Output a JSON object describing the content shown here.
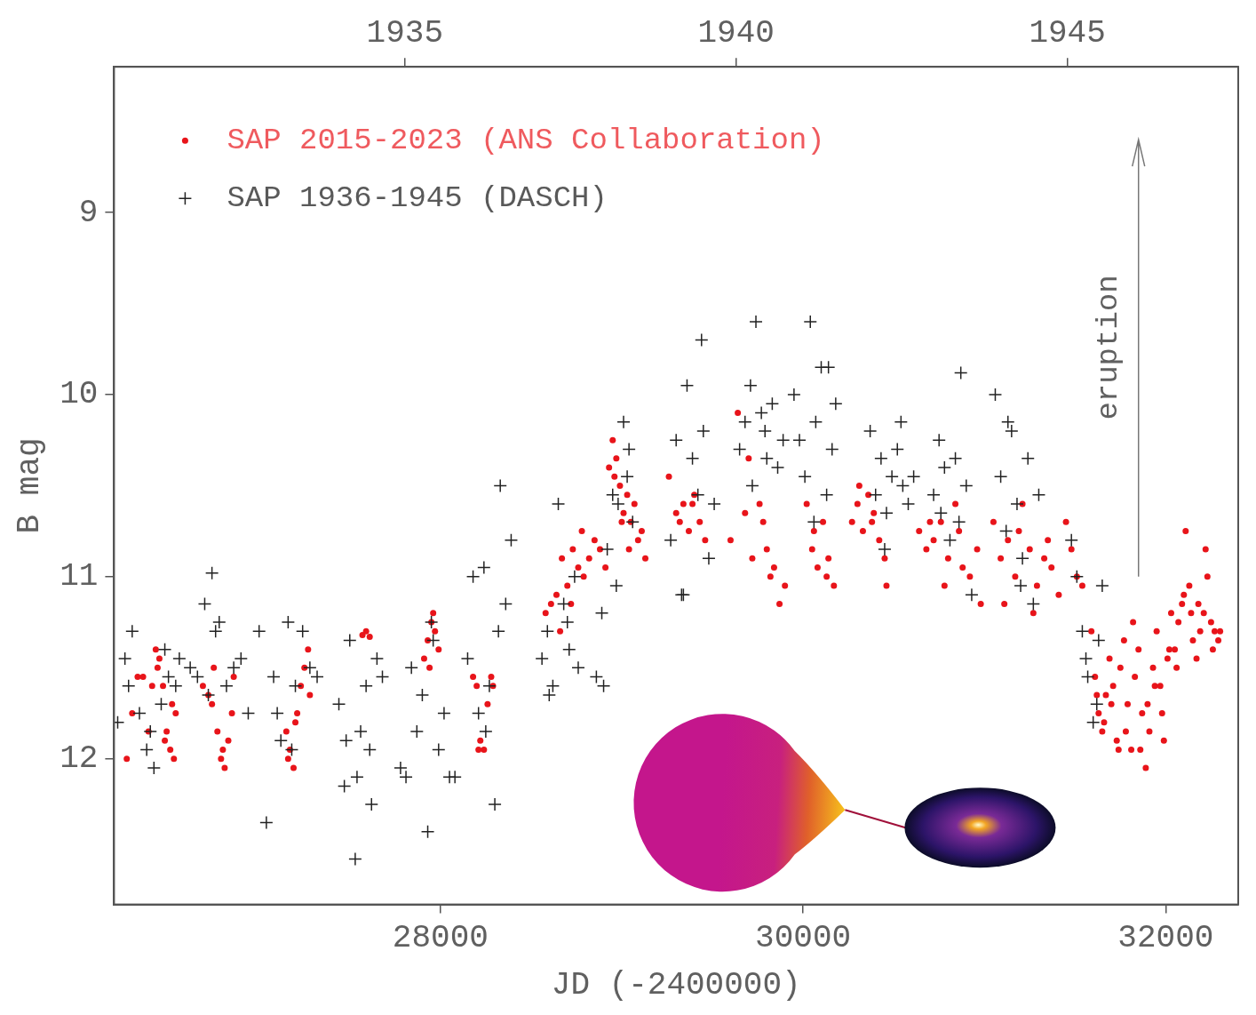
{
  "chart_data": {
    "type": "scatter",
    "x_label": "JD (-2400000)",
    "y_label": "B mag",
    "xlim": [
      26200,
      32400
    ],
    "xticks": [
      28000,
      30000,
      32000
    ],
    "x2lim": [
      1930.61,
      1947.58
    ],
    "x2ticks": [
      1935,
      1940,
      1945
    ],
    "ylim": [
      8.2,
      12.8
    ],
    "yticks": [
      9,
      10,
      11,
      12
    ],
    "y_reversed": true,
    "grid": false,
    "legend": "upper left",
    "annotations": [
      {
        "text": "eruption",
        "x": 31850,
        "y": 11,
        "arrow_to": 8.6
      }
    ],
    "series": [
      {
        "name": "SAP 2015-2023 (ANS Collaboration)",
        "color": "#e8141a",
        "marker": "circle",
        "x": [
          26270,
          26300,
          26330,
          26360,
          26390,
          26410,
          26430,
          26450,
          26470,
          26490,
          26510,
          26530,
          26540,
          26520,
          26480,
          26440,
          26690,
          26720,
          26750,
          26770,
          26790,
          26810,
          26830,
          26850,
          26860,
          26800,
          26740,
          27150,
          27170,
          27190,
          27210,
          27230,
          27250,
          27270,
          27280,
          27200,
          27160,
          27570,
          27590,
          27610,
          27910,
          27930,
          27950,
          27970,
          27990,
          27940,
          27960,
          28180,
          28200,
          28220,
          28240,
          28260,
          28280,
          28290,
          28210,
          28580,
          28610,
          28640,
          28670,
          28700,
          28730,
          28760,
          28790,
          28820,
          28850,
          28880,
          28910,
          28660,
          28720,
          28780,
          28930,
          28950,
          28970,
          28990,
          29010,
          29030,
          29050,
          29070,
          29090,
          29110,
          29130,
          28960,
          29000,
          29040,
          29260,
          29300,
          29340,
          29370,
          29400,
          29430,
          29460,
          29320,
          29390,
          29600,
          29640,
          29680,
          29720,
          29760,
          29800,
          29840,
          29870,
          29900,
          29700,
          29780,
          29820,
          30020,
          30050,
          30080,
          30110,
          30140,
          30170,
          30060,
          30130,
          30270,
          30300,
          30330,
          30360,
          30390,
          30420,
          30450,
          30460,
          30310,
          30380,
          30640,
          30680,
          30720,
          30760,
          30800,
          30840,
          30880,
          30920,
          30960,
          30980,
          30700,
          30780,
          30860,
          31050,
          31090,
          31130,
          31170,
          31210,
          31250,
          31290,
          31330,
          31370,
          31410,
          31110,
          31190,
          31270,
          31350,
          31450,
          31480,
          31510,
          31540,
          31590,
          31610,
          31630,
          31650,
          31670,
          31690,
          31710,
          31730,
          31750,
          31770,
          31790,
          31810,
          31830,
          31850,
          31870,
          31890,
          31910,
          31930,
          31950,
          31970,
          31990,
          32010,
          32030,
          32050,
          32070,
          32090,
          32110,
          32130,
          32150,
          32170,
          32190,
          32210,
          32230,
          32250,
          32270,
          32290,
          31620,
          31660,
          31700,
          31740,
          31780,
          31820,
          31860,
          31900,
          31940,
          31980,
          32020,
          32060,
          32100,
          32140,
          32180,
          32220,
          32260,
          32300
        ],
        "values": [
          12.0,
          11.75,
          11.55,
          11.55,
          11.85,
          11.6,
          11.4,
          11.45,
          11.6,
          11.85,
          11.95,
          12.0,
          11.75,
          11.7,
          11.9,
          11.5,
          11.6,
          11.65,
          11.5,
          11.85,
          12.0,
          12.05,
          11.9,
          11.75,
          11.55,
          11.95,
          11.7,
          11.85,
          11.95,
          12.05,
          11.75,
          11.6,
          11.5,
          11.4,
          11.65,
          11.8,
          12.0,
          11.32,
          11.3,
          11.33,
          11.45,
          11.35,
          11.25,
          11.3,
          11.4,
          11.5,
          11.2,
          11.55,
          11.6,
          11.9,
          11.95,
          11.7,
          11.55,
          11.6,
          11.95,
          11.2,
          11.15,
          11.1,
          10.9,
          11.05,
          10.85,
          10.95,
          11.0,
          10.9,
          10.8,
          10.85,
          10.95,
          11.3,
          11.15,
          10.75,
          10.4,
          10.25,
          10.35,
          10.5,
          10.65,
          10.55,
          10.7,
          10.6,
          10.8,
          10.75,
          10.9,
          10.45,
          10.7,
          10.85,
          10.45,
          10.65,
          10.6,
          10.75,
          10.55,
          10.7,
          10.8,
          10.7,
          10.6,
          10.8,
          10.1,
          10.65,
          10.9,
          10.6,
          10.85,
          10.95,
          11.15,
          11.05,
          10.35,
          10.7,
          11.0,
          10.6,
          10.85,
          10.95,
          10.7,
          10.9,
          11.05,
          10.75,
          11.0,
          10.7,
          10.6,
          10.75,
          10.55,
          10.65,
          10.8,
          10.9,
          11.05,
          10.5,
          10.7,
          10.75,
          10.85,
          10.8,
          10.7,
          10.9,
          10.6,
          10.95,
          11.0,
          10.85,
          11.15,
          10.7,
          11.05,
          10.75,
          10.7,
          10.9,
          10.8,
          11.0,
          10.6,
          10.85,
          11.05,
          10.9,
          10.95,
          11.1,
          11.15,
          10.75,
          11.2,
          10.8,
          10.7,
          10.85,
          11.0,
          11.05,
          11.3,
          11.55,
          11.75,
          11.85,
          11.65,
          11.45,
          11.6,
          11.9,
          11.5,
          11.35,
          11.7,
          11.95,
          11.55,
          11.4,
          11.75,
          12.05,
          11.85,
          11.5,
          11.3,
          11.6,
          11.9,
          11.45,
          11.2,
          11.4,
          11.25,
          11.15,
          10.75,
          11.05,
          11.35,
          11.45,
          11.3,
          11.2,
          11.0,
          11.25,
          11.3,
          11.35,
          11.65,
          11.8,
          11.7,
          11.95,
          11.85,
          11.25,
          11.95,
          11.7,
          11.6,
          11.75,
          11.4,
          11.5,
          11.1,
          11.2,
          11.15,
          10.85,
          11.4,
          11.3
        ]
      },
      {
        "name": "SAP 1936-1945 (DASCH)",
        "color": "#222222",
        "marker": "plus",
        "x": [
          26220,
          26260,
          26300,
          26340,
          26380,
          26420,
          26460,
          26500,
          26540,
          26560,
          26280,
          26400,
          26480,
          26620,
          26660,
          26700,
          26740,
          26780,
          26820,
          26860,
          26900,
          26940,
          26720,
          26760,
          27000,
          27040,
          27080,
          27120,
          27160,
          27200,
          27240,
          27280,
          27320,
          27100,
          27180,
          27440,
          27470,
          27500,
          27530,
          27560,
          27590,
          27620,
          27650,
          27680,
          27480,
          27540,
          27610,
          27780,
          27810,
          27840,
          27870,
          27900,
          27930,
          27960,
          27990,
          28020,
          28050,
          28080,
          27950,
          28150,
          28180,
          28210,
          28240,
          28270,
          28300,
          28330,
          28360,
          28390,
          28250,
          28320,
          28560,
          28590,
          28620,
          28650,
          28680,
          28710,
          28740,
          28760,
          28600,
          28700,
          28860,
          28890,
          28920,
          28950,
          28980,
          29010,
          29040,
          29060,
          28900,
          28970,
          29030,
          29270,
          29300,
          29330,
          29360,
          29390,
          29420,
          29450,
          29480,
          29510,
          29340,
          29440,
          29650,
          29680,
          29710,
          29740,
          29770,
          29800,
          29830,
          29860,
          29890,
          29720,
          29790,
          29950,
          29980,
          30010,
          30040,
          30070,
          30100,
          30130,
          30160,
          30180,
          30060,
          30140,
          30370,
          30400,
          30430,
          30460,
          30490,
          30520,
          30550,
          30580,
          30610,
          30450,
          30540,
          30720,
          30750,
          30780,
          30810,
          30840,
          30870,
          30900,
          30930,
          30760,
          30860,
          31060,
          31090,
          31120,
          31150,
          31180,
          31210,
          31240,
          31270,
          31300,
          31130,
          31200,
          31480,
          31510,
          31540,
          31570,
          31600,
          31630,
          31650,
          31560,
          31620
        ],
        "values": [
          11.8,
          11.45,
          11.3,
          11.75,
          11.95,
          12.05,
          11.7,
          11.55,
          11.6,
          11.45,
          11.6,
          11.85,
          11.4,
          11.5,
          11.55,
          11.15,
          10.98,
          11.25,
          11.6,
          11.5,
          11.45,
          11.75,
          11.65,
          11.3,
          11.3,
          12.35,
          11.55,
          11.9,
          11.25,
          11.6,
          11.3,
          11.5,
          11.55,
          11.75,
          11.95,
          11.7,
          12.15,
          11.35,
          12.55,
          11.85,
          11.6,
          12.25,
          11.45,
          11.55,
          11.9,
          12.1,
          11.95,
          12.05,
          12.1,
          11.5,
          11.85,
          11.65,
          12.4,
          11.35,
          11.95,
          11.75,
          12.1,
          12.1,
          11.25,
          11.45,
          11.0,
          11.75,
          10.95,
          11.6,
          12.25,
          10.5,
          11.15,
          10.8,
          11.85,
          11.3,
          11.45,
          11.3,
          11.6,
          10.6,
          11.15,
          11.4,
          11.0,
          11.5,
          11.65,
          11.25,
          11.55,
          11.2,
          10.85,
          10.55,
          10.6,
          10.15,
          10.3,
          10.7,
          11.6,
          11.05,
          10.45,
          10.8,
          10.25,
          11.1,
          9.95,
          10.35,
          10.55,
          10.2,
          10.9,
          10.6,
          11.1,
          9.7,
          10.3,
          10.15,
          9.95,
          9.6,
          10.1,
          10.35,
          10.05,
          10.4,
          10.25,
          10.5,
          10.2,
          10.0,
          10.25,
          10.45,
          9.6,
          10.15,
          9.85,
          10.55,
          10.3,
          10.05,
          10.7,
          9.85,
          10.2,
          10.55,
          10.35,
          10.65,
          10.45,
          10.3,
          10.5,
          10.6,
          10.45,
          10.85,
          10.15,
          10.55,
          10.25,
          10.4,
          10.8,
          10.35,
          9.88,
          10.5,
          11.1,
          10.65,
          10.7,
          10.0,
          10.45,
          10.75,
          10.2,
          10.6,
          10.9,
          10.35,
          11.15,
          10.55,
          10.15,
          11.05,
          10.8,
          11.0,
          11.3,
          11.55,
          11.8,
          11.35,
          11.05,
          11.45,
          11.7
        ]
      }
    ]
  }
}
